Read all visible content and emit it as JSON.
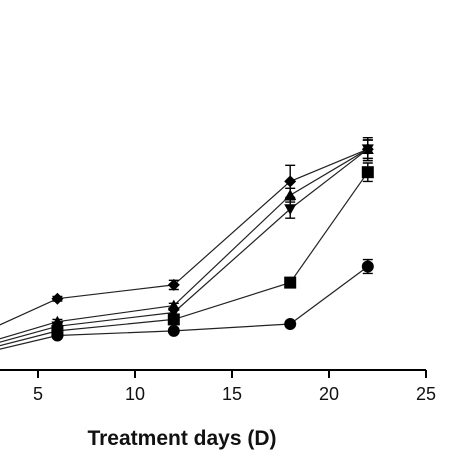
{
  "chart_data": {
    "type": "line",
    "xlabel": "Treatment days (D)",
    "x_ticks": [
      5,
      10,
      15,
      20,
      25
    ],
    "xlim": [
      3,
      25
    ],
    "ylim": [
      0,
      1.0
    ],
    "grid": false,
    "series": [
      {
        "marker": "diamond",
        "points": [
          [
            0,
            0.08
          ],
          [
            6,
            0.31
          ],
          [
            12,
            0.37
          ],
          [
            18,
            0.82
          ],
          [
            22,
            0.96
          ]
        ],
        "err": [
          0,
          0.01,
          0.02,
          0.07,
          0.05
        ]
      },
      {
        "marker": "triangle-up",
        "points": [
          [
            0,
            0.06
          ],
          [
            6,
            0.21
          ],
          [
            12,
            0.28
          ],
          [
            18,
            0.76
          ],
          [
            22,
            0.96
          ]
        ],
        "err": [
          0,
          0.01,
          0.01,
          0.03,
          0.04
        ]
      },
      {
        "marker": "triangle-down",
        "points": [
          [
            0,
            0.05
          ],
          [
            6,
            0.19
          ],
          [
            12,
            0.25
          ],
          [
            18,
            0.7
          ],
          [
            22,
            0.96
          ]
        ],
        "err": [
          0,
          0.01,
          0.01,
          0.04,
          0.04
        ]
      },
      {
        "marker": "square",
        "points": [
          [
            0,
            0.04
          ],
          [
            6,
            0.17
          ],
          [
            12,
            0.22
          ],
          [
            18,
            0.38
          ],
          [
            22,
            0.86
          ]
        ],
        "err": [
          0,
          0.01,
          0.01,
          0.02,
          0.04
        ]
      },
      {
        "marker": "circle",
        "points": [
          [
            0,
            0.03
          ],
          [
            6,
            0.15
          ],
          [
            12,
            0.17
          ],
          [
            18,
            0.2
          ],
          [
            22,
            0.45
          ]
        ],
        "err": [
          0,
          0.01,
          0.01,
          0.01,
          0.03
        ]
      }
    ]
  }
}
